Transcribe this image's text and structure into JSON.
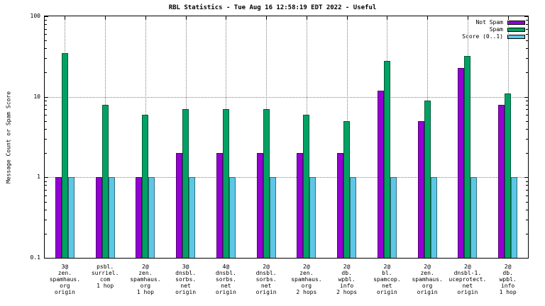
{
  "chart_data": {
    "type": "bar",
    "title": "RBL Statistics - Tue Aug 16 12:58:19 EDT 2022 - Useful",
    "ylabel": "Message Count or Spam Score",
    "yscale": "log",
    "ylim": [
      0.1,
      100
    ],
    "yticks": [
      0.1,
      1,
      10,
      100
    ],
    "ytick_labels": [
      "0.1",
      "1",
      "10",
      "100"
    ],
    "grid": true,
    "legend_position": "top-right",
    "background_color": "#ffffff",
    "categories": [
      [
        "3@",
        "zen.",
        "spamhaus.",
        "org",
        "origin"
      ],
      [
        "psbl.",
        "surriel.",
        "com",
        "1 hop"
      ],
      [
        "2@",
        "zen.",
        "spamhaus.",
        "org",
        "1 hop"
      ],
      [
        "3@",
        "dnsbl.",
        "sorbs.",
        "net",
        "origin"
      ],
      [
        "4@",
        "dnsbl.",
        "sorbs.",
        "net",
        "origin"
      ],
      [
        "2@",
        "dnsbl.",
        "sorbs.",
        "net",
        "origin"
      ],
      [
        "2@",
        "zen.",
        "spamhaus.",
        "org",
        "2 hops"
      ],
      [
        "2@",
        "db.",
        "wpbl.",
        "info",
        "2 hops"
      ],
      [
        "2@",
        "bl.",
        "spamcop.",
        "net",
        "origin"
      ],
      [
        "2@",
        "zen.",
        "spamhaus.",
        "org",
        "origin"
      ],
      [
        "2@",
        "dnsbl-1.",
        "uceprotect.",
        "net",
        "origin"
      ],
      [
        "2@",
        "db.",
        "wpbl.",
        "info",
        "1 hop"
      ]
    ],
    "series": [
      {
        "name": "Not Spam",
        "color": "#9400d3",
        "values": [
          1,
          1,
          1,
          2,
          2,
          2,
          2,
          2,
          12,
          5,
          23,
          8
        ]
      },
      {
        "name": "Spam",
        "color": "#00a264",
        "values": [
          35,
          8,
          6,
          7,
          7,
          7,
          6,
          5,
          28,
          9,
          32,
          11
        ]
      },
      {
        "name": "Score (0..1)",
        "color": "#5dc7e6",
        "values": [
          1,
          1,
          1,
          1,
          1,
          1,
          1,
          1,
          1,
          1,
          1,
          1
        ]
      }
    ]
  }
}
